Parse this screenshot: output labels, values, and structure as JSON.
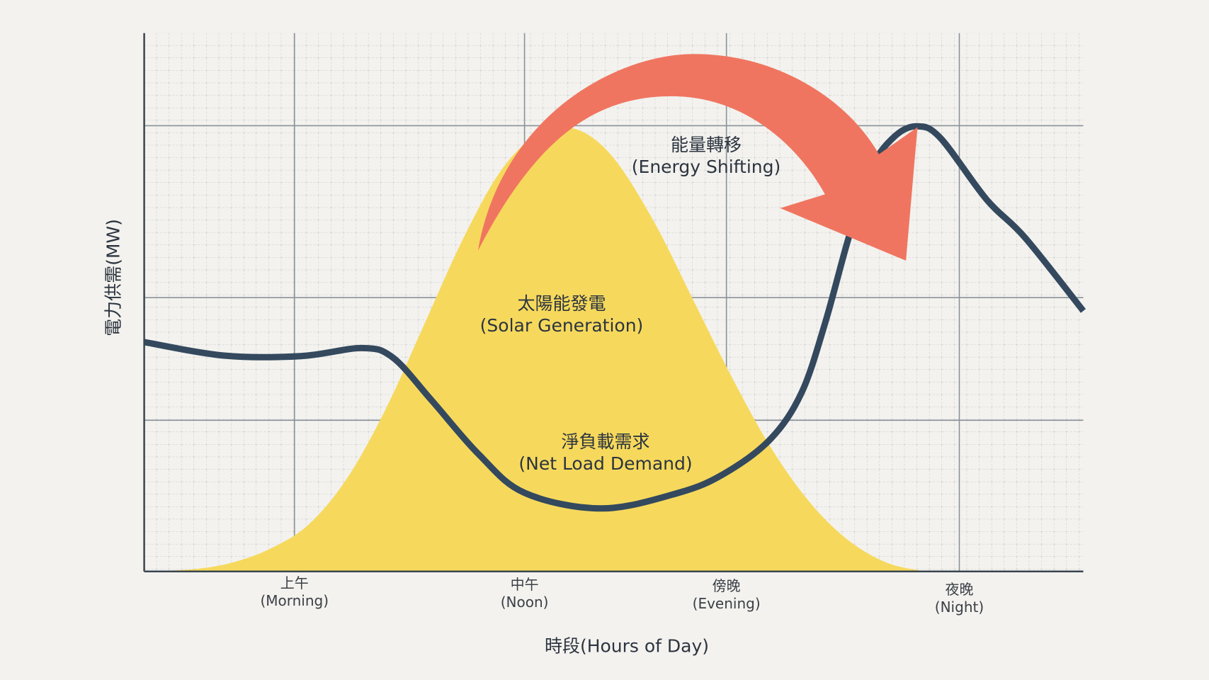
{
  "chart_data": {
    "type": "area-line",
    "xlabel": "時段(Hours of Day)",
    "ylabel": "電力供需(MW)",
    "xlim": [
      0,
      100
    ],
    "ylim": [
      0,
      100
    ],
    "xticks": [
      {
        "value": 16,
        "label": "上午\n(Morning)"
      },
      {
        "value": 40.5,
        "label": "中午\n(Noon)"
      },
      {
        "value": 62,
        "label": "傍晚\n(Evening)"
      },
      {
        "value": 86.8,
        "label": "夜晚\n(Night)"
      }
    ],
    "grid": true,
    "annotations": [
      {
        "text": "能量轉移\n(Energy Shifting)",
        "color": "#f07560"
      }
    ],
    "series": [
      {
        "name": "太陽能發電\n(Solar Generation)",
        "kind": "area",
        "color": "#f6d95c",
        "x": [
          0,
          5.2,
          9.3,
          13.4,
          17.5,
          21.6,
          25.7,
          29.8,
          33.9,
          38.0,
          42.1,
          43.8,
          47.0,
          50.3,
          54.4,
          58.5,
          62.6,
          66.7,
          70.8,
          74.9,
          79.1,
          83.2
        ],
        "values": [
          0,
          0.4,
          1.6,
          4.2,
          8.7,
          17.3,
          30.1,
          45.8,
          61.6,
          74.5,
          81.9,
          82.7,
          81.4,
          76.1,
          64.6,
          50.3,
          36.0,
          23.1,
          13.0,
          5.9,
          1.6,
          0
        ]
      },
      {
        "name": "淨負載需求\n(Net Load Demand)",
        "kind": "line",
        "color": "#34495e",
        "x": [
          0,
          8.5,
          16.7,
          23.2,
          26.5,
          30.6,
          35.6,
          40.5,
          48.7,
          56.9,
          61.8,
          66.7,
          70.0,
          72.5,
          75.0,
          77.4,
          79.9,
          82.3,
          84.8,
          89.7,
          93.8,
          100
        ],
        "values": [
          42.6,
          40.1,
          40.0,
          41.5,
          39.7,
          31.8,
          21.8,
          14.6,
          11.7,
          14.6,
          18.2,
          24.6,
          33.2,
          46.1,
          61.9,
          74.8,
          80.8,
          82.7,
          80.5,
          69.1,
          62.0,
          48.4
        ]
      }
    ]
  }
}
